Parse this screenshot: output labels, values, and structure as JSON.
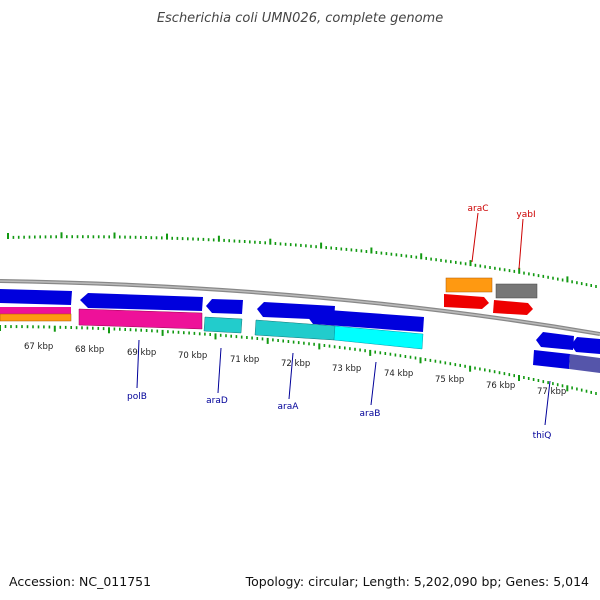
{
  "title": "Escherichia coli UMN026, complete genome",
  "footer": {
    "accession": "Accession: NC_011751",
    "summary": "Topology: circular; Length: 5,202,090 bp; Genes: 5,014"
  },
  "colors": {
    "backbone": "#888888",
    "tick": "#119911",
    "blue": "#0000dd",
    "pink": "#ee1199",
    "orange": "#ff9911",
    "cyan": "#22cccc",
    "bright_cyan": "#00ffff",
    "red": "#ee0000",
    "gray": "#777777",
    "purple": "#5555aa",
    "forward_label": "#cc0000",
    "reverse_label": "#000099"
  },
  "kbp_labels": [
    "67 kbp",
    "68 kbp",
    "69 kbp",
    "70 kbp",
    "71 kbp",
    "72 kbp",
    "73 kbp",
    "74 kbp",
    "75 kbp",
    "76 kbp",
    "77 kbp"
  ],
  "forward_genes": [
    "araC",
    "yabI"
  ],
  "reverse_genes": [
    "polB",
    "araD",
    "araA",
    "araB",
    "thiQ"
  ]
}
